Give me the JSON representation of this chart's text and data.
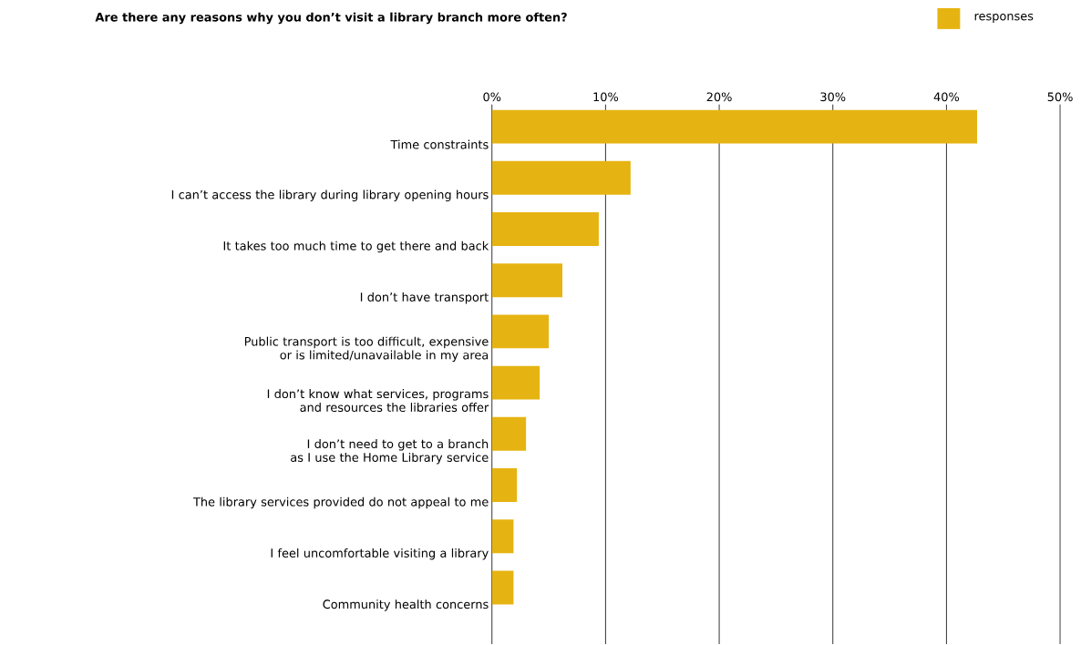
{
  "chart_data": {
    "type": "bar",
    "orientation": "horizontal",
    "title": "Are there any reasons why you don’t visit a library branch more often?",
    "categories": [
      "Time constraints",
      "I can’t access the library during library opening hours",
      "It takes too much time to get there and back",
      "I don’t have transport",
      "Public transport is too difficult, expensive or is limited/unavailable in my area",
      "I don’t know what services, programs and resources the libraries offer",
      "I don’t need to get to a branch as I use the Home Library service",
      "The library services provided do not appeal to me",
      "I feel uncomfortable visiting a library",
      "Community health concerns"
    ],
    "series": [
      {
        "name": "responses",
        "color": "#e6b412",
        "values": [
          42.7,
          12.2,
          9.4,
          6.2,
          5.0,
          4.2,
          3.0,
          2.2,
          1.9,
          1.9
        ]
      }
    ],
    "xlim": [
      0,
      50
    ],
    "xticks": [
      {
        "value": 0,
        "label": "0%"
      },
      {
        "value": 10,
        "label": "10%"
      },
      {
        "value": 20,
        "label": "20%"
      },
      {
        "value": 30,
        "label": "30%"
      },
      {
        "value": 40,
        "label": "40%"
      },
      {
        "value": 50,
        "label": "50%"
      }
    ],
    "grid": "x",
    "legend": "top right"
  }
}
